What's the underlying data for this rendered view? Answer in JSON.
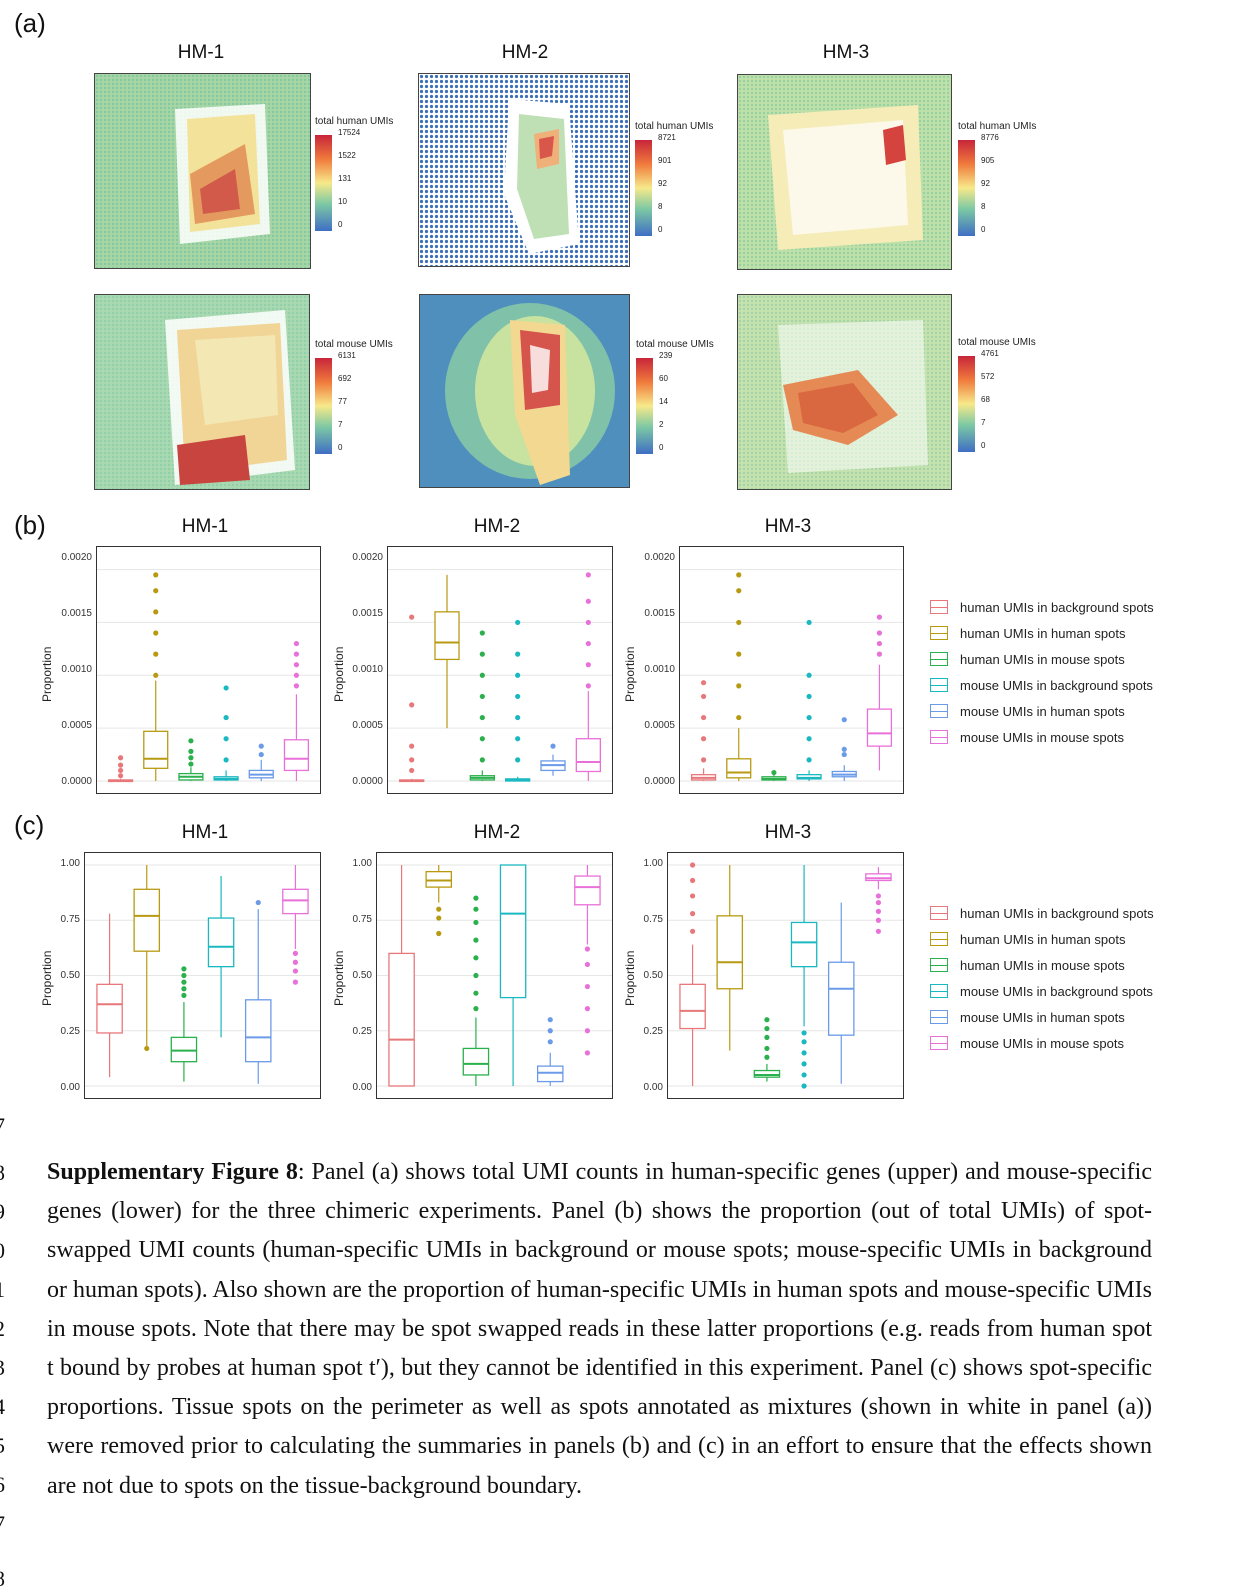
{
  "panel_labels": {
    "a": "(a)",
    "b": "(b)",
    "c": "(c)"
  },
  "experiments": [
    "HM-1",
    "HM-2",
    "HM-3"
  ],
  "panel_a": {
    "human_title": "total human UMIs",
    "mouse_title": "total mouse UMIs",
    "human_ticks": [
      [
        "17524",
        "1522",
        "131",
        "10",
        "0"
      ],
      [
        "8721",
        "901",
        "92",
        "8",
        "0"
      ],
      [
        "8776",
        "905",
        "92",
        "8",
        "0"
      ]
    ],
    "mouse_ticks": [
      [
        "6131",
        "692",
        "77",
        "7",
        "0"
      ],
      [
        "239",
        "60",
        "14",
        "2",
        "0"
      ],
      [
        "4761",
        "572",
        "68",
        "7",
        "0"
      ]
    ]
  },
  "legend": [
    {
      "label": "human UMIs in background spots",
      "color": "#e8777a"
    },
    {
      "label": "human UMIs in human spots",
      "color": "#b89a12"
    },
    {
      "label": "human UMIs in mouse spots",
      "color": "#2ab04c"
    },
    {
      "label": "mouse UMIs in background spots",
      "color": "#1ab8c0"
    },
    {
      "label": "mouse UMIs in human spots",
      "color": "#6a9ae8"
    },
    {
      "label": "mouse UMIs in mouse spots",
      "color": "#e870d8"
    }
  ],
  "chart_data": [
    {
      "type": "boxplot",
      "panel": "(b)",
      "ylabel": "Proportion",
      "ylim": [
        0,
        0.0021
      ],
      "yticks": [
        "0.0000",
        "0.0005",
        "0.0010",
        "0.0015",
        "0.0020"
      ],
      "ytick_values": [
        0,
        0.0005,
        0.001,
        0.0015,
        0.002
      ],
      "facets": [
        {
          "title": "HM-1",
          "boxes": [
            {
              "series": 0,
              "q1": 0.0,
              "median": 0.0,
              "q3": 1e-05,
              "lo": 0.0,
              "hi": 2e-05,
              "outliers": [
                5e-05,
                0.0001,
                0.00015,
                0.00022
              ]
            },
            {
              "series": 1,
              "q1": 0.00012,
              "median": 0.00021,
              "q3": 0.00047,
              "lo": 0.0,
              "hi": 0.00095,
              "outliers": [
                0.001,
                0.0012,
                0.0014,
                0.0016,
                0.0018,
                0.00195
              ]
            },
            {
              "series": 2,
              "q1": 1e-05,
              "median": 4e-05,
              "q3": 7e-05,
              "lo": 0.0,
              "hi": 0.00013,
              "outliers": [
                0.00016,
                0.00022,
                0.00028,
                0.00038
              ]
            },
            {
              "series": 3,
              "q1": 1e-05,
              "median": 2e-05,
              "q3": 4e-05,
              "lo": 0.0,
              "hi": 0.0001,
              "outliers": [
                0.0002,
                0.0004,
                0.0006,
                0.00088
              ]
            },
            {
              "series": 4,
              "q1": 3e-05,
              "median": 6e-05,
              "q3": 0.0001,
              "lo": 0.0,
              "hi": 0.0002,
              "outliers": [
                0.00025,
                0.00033
              ]
            },
            {
              "series": 5,
              "q1": 0.0001,
              "median": 0.00021,
              "q3": 0.00039,
              "lo": 0.0,
              "hi": 0.00082,
              "outliers": [
                0.0009,
                0.001,
                0.0011,
                0.0012,
                0.0013
              ]
            }
          ]
        },
        {
          "title": "HM-2",
          "boxes": [
            {
              "series": 0,
              "q1": 0.0,
              "median": 0.0,
              "q3": 1e-05,
              "lo": 0.0,
              "hi": 2e-05,
              "outliers": [
                0.0001,
                0.0002,
                0.00033,
                0.00072,
                0.00155
              ]
            },
            {
              "series": 1,
              "q1": 0.00115,
              "median": 0.00131,
              "q3": 0.0016,
              "lo": 0.0005,
              "hi": 0.00195,
              "outliers": []
            },
            {
              "series": 2,
              "q1": 1e-05,
              "median": 3e-05,
              "q3": 5e-05,
              "lo": 0.0,
              "hi": 0.0001,
              "outliers": [
                0.0002,
                0.0004,
                0.0006,
                0.0008,
                0.001,
                0.0012,
                0.0014
              ]
            },
            {
              "series": 3,
              "q1": 0.0,
              "median": 1e-05,
              "q3": 2e-05,
              "lo": 0.0,
              "hi": 4e-05,
              "outliers": [
                0.0002,
                0.0004,
                0.0006,
                0.0008,
                0.001,
                0.0012,
                0.0015
              ]
            },
            {
              "series": 4,
              "q1": 0.0001,
              "median": 0.00015,
              "q3": 0.00019,
              "lo": 5e-05,
              "hi": 0.00025,
              "outliers": [
                0.00033
              ]
            },
            {
              "series": 5,
              "q1": 9e-05,
              "median": 0.00018,
              "q3": 0.0004,
              "lo": 0.0,
              "hi": 0.00085,
              "outliers": [
                0.0009,
                0.0011,
                0.0013,
                0.0015,
                0.0017,
                0.00195
              ]
            }
          ]
        },
        {
          "title": "HM-3",
          "boxes": [
            {
              "series": 0,
              "q1": 1e-05,
              "median": 3e-05,
              "q3": 6e-05,
              "lo": 0.0,
              "hi": 0.00012,
              "outliers": [
                0.0002,
                0.0004,
                0.0006,
                0.0008,
                0.00093
              ]
            },
            {
              "series": 1,
              "q1": 3e-05,
              "median": 8e-05,
              "q3": 0.00021,
              "lo": 0.0,
              "hi": 0.0005,
              "outliers": [
                0.0006,
                0.0009,
                0.0012,
                0.0015,
                0.0018,
                0.00195
              ]
            },
            {
              "series": 2,
              "q1": 1e-05,
              "median": 2e-05,
              "q3": 4e-05,
              "lo": 0.0,
              "hi": 6e-05,
              "outliers": [
                8e-05
              ]
            },
            {
              "series": 3,
              "q1": 2e-05,
              "median": 3e-05,
              "q3": 6e-05,
              "lo": 0.0,
              "hi": 0.0001,
              "outliers": [
                0.0002,
                0.0004,
                0.0006,
                0.0008,
                0.001,
                0.0015
              ]
            },
            {
              "series": 4,
              "q1": 4e-05,
              "median": 6e-05,
              "q3": 9e-05,
              "lo": 0.0,
              "hi": 0.00015,
              "outliers": [
                0.00025,
                0.0003,
                0.00058
              ]
            },
            {
              "series": 5,
              "q1": 0.00033,
              "median": 0.00045,
              "q3": 0.00068,
              "lo": 0.0001,
              "hi": 0.0011,
              "outliers": [
                0.0012,
                0.0013,
                0.0014,
                0.00155
              ]
            }
          ]
        }
      ]
    },
    {
      "type": "boxplot",
      "panel": "(c)",
      "ylabel": "Proportion",
      "ylim": [
        0,
        1.0
      ],
      "yticks": [
        "0.00",
        "0.25",
        "0.50",
        "0.75",
        "1.00"
      ],
      "ytick_values": [
        0,
        0.25,
        0.5,
        0.75,
        1.0
      ],
      "facets": [
        {
          "title": "HM-1",
          "boxes": [
            {
              "series": 0,
              "q1": 0.24,
              "median": 0.37,
              "q3": 0.46,
              "lo": 0.04,
              "hi": 0.78,
              "outliers": []
            },
            {
              "series": 1,
              "q1": 0.61,
              "median": 0.77,
              "q3": 0.89,
              "lo": 0.18,
              "hi": 1.0,
              "outliers": [
                0.17
              ]
            },
            {
              "series": 2,
              "q1": 0.11,
              "median": 0.16,
              "q3": 0.22,
              "lo": 0.02,
              "hi": 0.38,
              "outliers": [
                0.41,
                0.44,
                0.47,
                0.5,
                0.53
              ]
            },
            {
              "series": 3,
              "q1": 0.54,
              "median": 0.63,
              "q3": 0.76,
              "lo": 0.22,
              "hi": 0.95,
              "outliers": []
            },
            {
              "series": 4,
              "q1": 0.11,
              "median": 0.22,
              "q3": 0.39,
              "lo": 0.01,
              "hi": 0.8,
              "outliers": [
                0.83
              ]
            },
            {
              "series": 5,
              "q1": 0.78,
              "median": 0.84,
              "q3": 0.89,
              "lo": 0.62,
              "hi": 1.0,
              "outliers": [
                0.47,
                0.52,
                0.56,
                0.6
              ]
            }
          ]
        },
        {
          "title": "HM-2",
          "boxes": [
            {
              "series": 0,
              "q1": 0.0,
              "median": 0.21,
              "q3": 0.6,
              "lo": 0.0,
              "hi": 1.0,
              "outliers": []
            },
            {
              "series": 1,
              "q1": 0.9,
              "median": 0.93,
              "q3": 0.97,
              "lo": 0.83,
              "hi": 1.0,
              "outliers": [
                0.69,
                0.76,
                0.8
              ]
            },
            {
              "series": 2,
              "q1": 0.05,
              "median": 0.1,
              "q3": 0.17,
              "lo": 0.0,
              "hi": 0.31,
              "outliers": [
                0.35,
                0.42,
                0.5,
                0.58,
                0.66,
                0.74,
                0.8,
                0.85
              ]
            },
            {
              "series": 3,
              "q1": 0.4,
              "median": 0.78,
              "q3": 1.0,
              "lo": 0.0,
              "hi": 1.0,
              "outliers": []
            },
            {
              "series": 4,
              "q1": 0.02,
              "median": 0.06,
              "q3": 0.09,
              "lo": 0.0,
              "hi": 0.15,
              "outliers": [
                0.2,
                0.25,
                0.3
              ]
            },
            {
              "series": 5,
              "q1": 0.82,
              "median": 0.9,
              "q3": 0.95,
              "lo": 0.64,
              "hi": 1.0,
              "outliers": [
                0.15,
                0.25,
                0.35,
                0.45,
                0.55,
                0.62
              ]
            }
          ]
        },
        {
          "title": "HM-3",
          "boxes": [
            {
              "series": 0,
              "q1": 0.26,
              "median": 0.34,
              "q3": 0.46,
              "lo": 0.0,
              "hi": 0.64,
              "outliers": [
                0.7,
                0.78,
                0.86,
                0.93,
                1.0
              ]
            },
            {
              "series": 1,
              "q1": 0.44,
              "median": 0.56,
              "q3": 0.77,
              "lo": 0.16,
              "hi": 1.0,
              "outliers": []
            },
            {
              "series": 2,
              "q1": 0.04,
              "median": 0.05,
              "q3": 0.07,
              "lo": 0.02,
              "hi": 0.1,
              "outliers": [
                0.13,
                0.17,
                0.22,
                0.26,
                0.3
              ]
            },
            {
              "series": 3,
              "q1": 0.54,
              "median": 0.65,
              "q3": 0.74,
              "lo": 0.27,
              "hi": 1.0,
              "outliers": [
                0.0,
                0.05,
                0.1,
                0.15,
                0.2,
                0.24
              ]
            },
            {
              "series": 4,
              "q1": 0.23,
              "median": 0.44,
              "q3": 0.56,
              "lo": 0.01,
              "hi": 0.83,
              "outliers": []
            },
            {
              "series": 5,
              "q1": 0.93,
              "median": 0.94,
              "q3": 0.96,
              "lo": 0.89,
              "hi": 0.99,
              "outliers": [
                0.7,
                0.75,
                0.79,
                0.83,
                0.86
              ]
            }
          ]
        }
      ]
    }
  ],
  "line_numbers": [
    "7",
    "8",
    "9",
    "0",
    "1",
    "2",
    "3",
    "4",
    "5",
    "6",
    "7",
    "8"
  ],
  "caption": {
    "title": "Supplementary Figure 8",
    "text": ": Panel (a) shows total UMI counts in human-specific genes (upper) and mouse-specific genes (lower) for the three chimeric experiments. Panel (b) shows the proportion (out of total UMIs) of spot-swapped UMI counts (human-specific UMIs in background or mouse spots; mouse-specific UMIs in background or human spots). Also shown are the proportion of human-specific UMIs in human spots and mouse-specific UMIs in mouse spots. Note that there may be spot swapped reads in these latter proportions (e.g. reads from human spot t bound by probes at human spot t′), but they cannot be identified in this experiment. Panel (c) shows spot-specific proportions.  Tissue spots on the perimeter as well as spots annotated as mixtures (shown in white in panel (a)) were removed prior to calculating the summaries in panels (b) and (c) in an effort to ensure that the effects shown are not due to spots on the tissue-background boundary."
  }
}
